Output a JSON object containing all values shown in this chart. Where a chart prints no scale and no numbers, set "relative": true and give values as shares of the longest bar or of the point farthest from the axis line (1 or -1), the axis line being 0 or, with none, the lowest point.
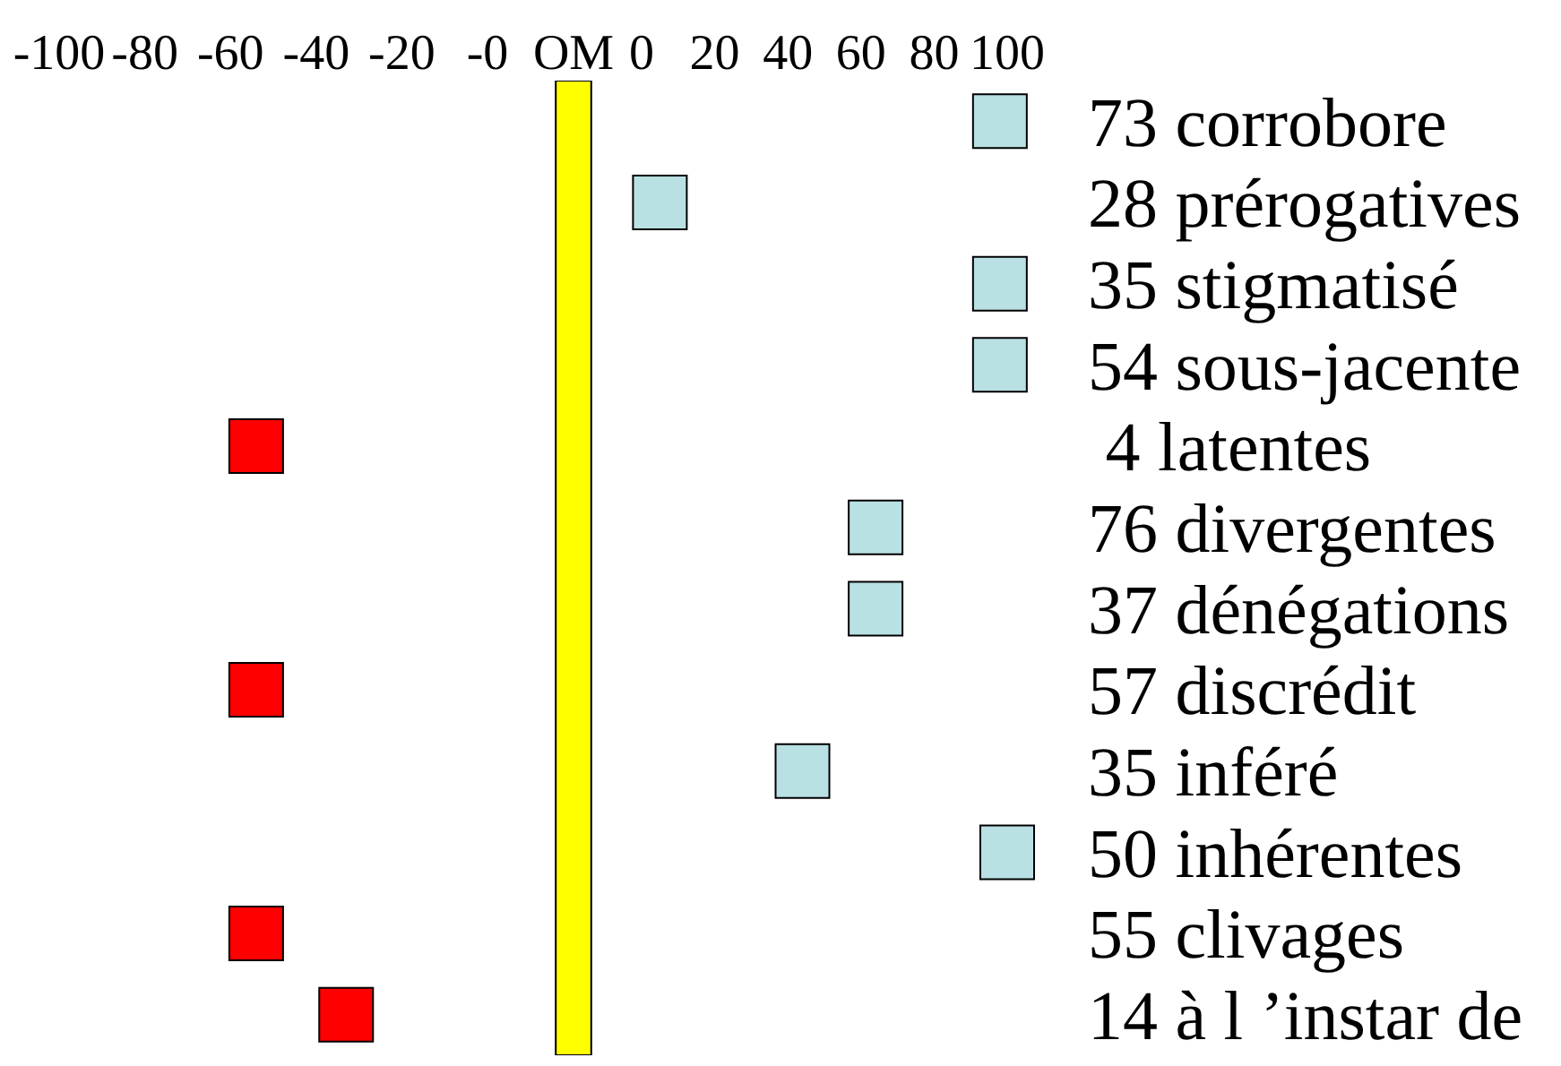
{
  "chart_data": [
    {
      "type": "scatter",
      "orientation": "horizontal",
      "marker": "square",
      "tick_labels": "x",
      "xlim": [
        -100,
        0
      ],
      "xticks": [
        -100,
        -80,
        -60,
        -40,
        -20,
        {
          "value": 0,
          "label": "-0"
        }
      ],
      "categories": [
        "73 corrobore",
        "28 prérogatives",
        "35 stigmatisé",
        "54 sous-jacente",
        " 4 latentes",
        "76 divergentes",
        "37 dénégations",
        "57 discrédit",
        "35 inféré",
        "50 inhérentes",
        "55 clivages",
        "14 à l ’instar de"
      ],
      "series": [
        {
          "color": "#ff0000",
          "values": [
            null,
            null,
            null,
            null,
            -54,
            null,
            null,
            -54,
            null,
            null,
            -54,
            -33
          ]
        }
      ]
    },
    {
      "type": "bar",
      "relative": true,
      "tick_labels": "x",
      "categories": [
        "OM"
      ],
      "values": [
        1
      ],
      "color": "#ffff00"
    },
    {
      "type": "scatter",
      "orientation": "horizontal",
      "marker": "square",
      "xlim": [
        0,
        100
      ],
      "xticks": [
        0,
        20,
        40,
        60,
        80,
        100
      ],
      "categories": [
        "73 corrobore",
        "28 prérogatives",
        "35 stigmatisé",
        "54 sous-jacente",
        " 4 latentes",
        "76 divergentes",
        "37 dénégations",
        "57 discrédit",
        "35 inféré",
        "50 inhérentes",
        "55 clivages",
        "14 à l ’instar de"
      ],
      "series": [
        {
          "color": "#b9e0e3",
          "values": [
            98,
            5,
            98,
            98,
            null,
            64,
            64,
            null,
            44,
            100,
            null,
            null
          ]
        }
      ]
    }
  ]
}
